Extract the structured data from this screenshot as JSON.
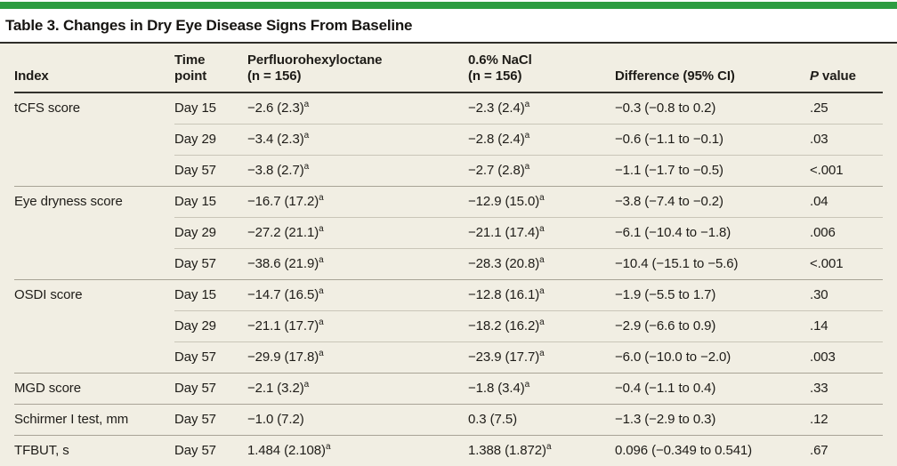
{
  "title": "Table 3. Changes in Dry Eye Disease Signs From Baseline",
  "colors": {
    "accent_green": "#2d9c41",
    "table_background": "#f1eee3",
    "rule_dark": "#2e2d29",
    "divider_light": "#c9c5b8",
    "divider_group": "#a8a396"
  },
  "table": {
    "columns": [
      {
        "line1": "Index"
      },
      {
        "line1": "Time",
        "line2": "point"
      },
      {
        "line1": "Perfluorohexyloctane",
        "line2": "(n = 156)"
      },
      {
        "line1": "0.6% NaCl",
        "line2": "(n = 156)"
      },
      {
        "line1": "Difference (95% CI)"
      },
      {
        "italic": "P",
        "rest": " value"
      }
    ],
    "footnote_marker": "a",
    "groups": [
      {
        "index": "tCFS score",
        "rows": [
          {
            "time": "Day 15",
            "pfh": "−2.6 (2.3)",
            "pfh_sup": "a",
            "nacl": "−2.3 (2.4)",
            "nacl_sup": "a",
            "diff": "−0.3 (−0.8 to 0.2)",
            "p": ".25"
          },
          {
            "time": "Day 29",
            "pfh": "−3.4 (2.3)",
            "pfh_sup": "a",
            "nacl": "−2.8 (2.4)",
            "nacl_sup": "a",
            "diff": "−0.6 (−1.1 to −0.1)",
            "p": ".03"
          },
          {
            "time": "Day 57",
            "pfh": "−3.8 (2.7)",
            "pfh_sup": "a",
            "nacl": "−2.7 (2.8)",
            "nacl_sup": "a",
            "diff": "−1.1 (−1.7 to −0.5)",
            "p": "<.001"
          }
        ]
      },
      {
        "index": "Eye dryness score",
        "rows": [
          {
            "time": "Day 15",
            "pfh": "−16.7 (17.2)",
            "pfh_sup": "a",
            "nacl": "−12.9 (15.0)",
            "nacl_sup": "a",
            "diff": "−3.8 (−7.4 to −0.2)",
            "p": ".04"
          },
          {
            "time": "Day 29",
            "pfh": "−27.2 (21.1)",
            "pfh_sup": "a",
            "nacl": "−21.1 (17.4)",
            "nacl_sup": "a",
            "diff": "−6.1 (−10.4 to −1.8)",
            "p": ".006"
          },
          {
            "time": "Day 57",
            "pfh": "−38.6 (21.9)",
            "pfh_sup": "a",
            "nacl": "−28.3 (20.8)",
            "nacl_sup": "a",
            "diff": "−10.4 (−15.1 to −5.6)",
            "p": "<.001"
          }
        ]
      },
      {
        "index": "OSDI score",
        "rows": [
          {
            "time": "Day 15",
            "pfh": "−14.7 (16.5)",
            "pfh_sup": "a",
            "nacl": "−12.8 (16.1)",
            "nacl_sup": "a",
            "diff": "−1.9 (−5.5 to 1.7)",
            "p": ".30"
          },
          {
            "time": "Day 29",
            "pfh": "−21.1 (17.7)",
            "pfh_sup": "a",
            "nacl": "−18.2 (16.2)",
            "nacl_sup": "a",
            "diff": "−2.9 (−6.6 to 0.9)",
            "p": ".14"
          },
          {
            "time": "Day 57",
            "pfh": "−29.9 (17.8)",
            "pfh_sup": "a",
            "nacl": "−23.9 (17.7)",
            "nacl_sup": "a",
            "diff": "−6.0 (−10.0 to −2.0)",
            "p": ".003"
          }
        ]
      },
      {
        "index": "MGD score",
        "rows": [
          {
            "time": "Day 57",
            "pfh": "−2.1 (3.2)",
            "pfh_sup": "a",
            "nacl": "−1.8 (3.4)",
            "nacl_sup": "a",
            "diff": "−0.4 (−1.1 to 0.4)",
            "p": ".33"
          }
        ]
      },
      {
        "index": "Schirmer I test, mm",
        "rows": [
          {
            "time": "Day 57",
            "pfh": "−1.0 (7.2)",
            "pfh_sup": "",
            "nacl": "0.3 (7.5)",
            "nacl_sup": "",
            "diff": "−1.3 (−2.9 to 0.3)",
            "p": ".12"
          }
        ]
      },
      {
        "index": "TFBUT, s",
        "rows": [
          {
            "time": "Day 57",
            "pfh": "1.484 (2.108)",
            "pfh_sup": "a",
            "nacl": "1.388 (1.872)",
            "nacl_sup": "a",
            "diff": "0.096 (−0.349 to 0.541)",
            "p": ".67"
          }
        ]
      }
    ]
  }
}
